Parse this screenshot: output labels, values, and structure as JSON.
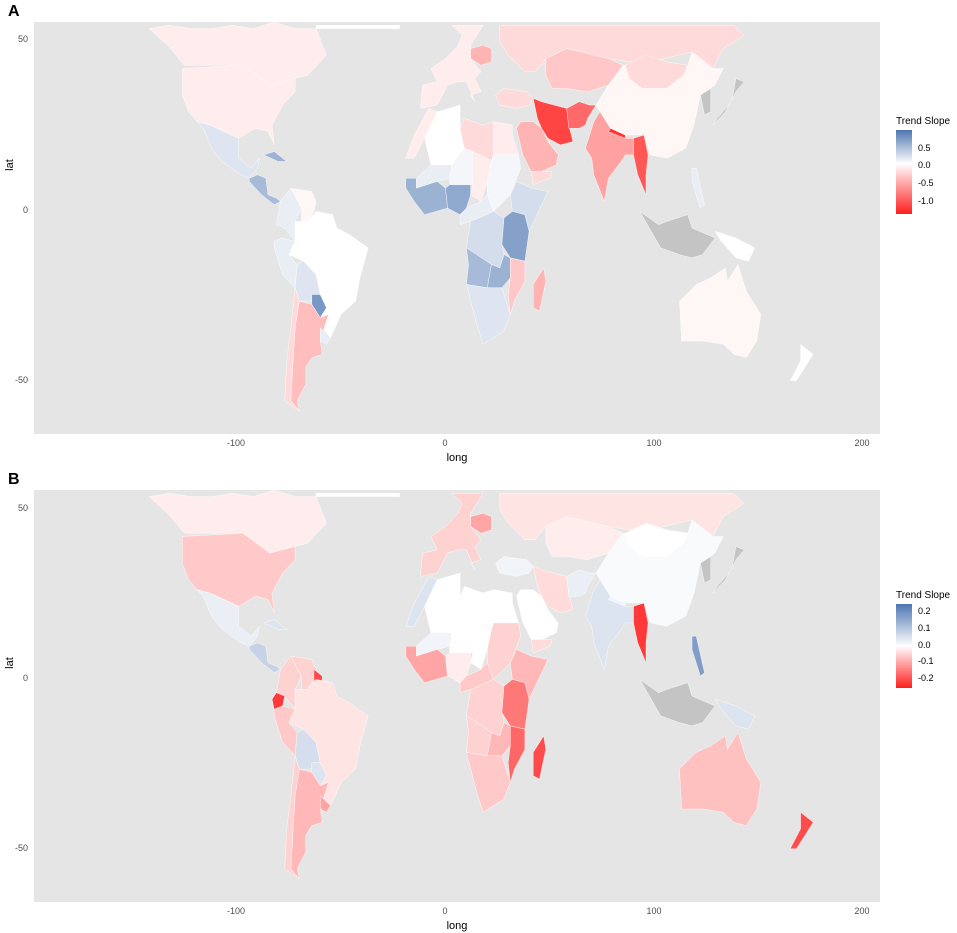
{
  "panels": [
    {
      "letter": "A",
      "x_label": "long",
      "y_label": "lat",
      "x_ticks": [
        "-100",
        "0",
        "100",
        "200"
      ],
      "y_ticks": [
        "50",
        "0",
        "-50"
      ],
      "legend": {
        "title": "Trend Slope",
        "labels": [
          "0.5",
          "0.0",
          "-0.5",
          "-1.0"
        ],
        "range": [
          -1.2,
          0.8
        ]
      },
      "regions": [
        {
          "name": "Canada",
          "value": -0.1
        },
        {
          "name": "United States",
          "value": -0.1
        },
        {
          "name": "Mexico",
          "value": 0.15
        },
        {
          "name": "Central America",
          "value": 0.4
        },
        {
          "name": "Cuba",
          "value": 0.45
        },
        {
          "name": "Colombia",
          "value": 0.1
        },
        {
          "name": "Venezuela",
          "value": -0.05
        },
        {
          "name": "Brazil",
          "value": 0.0
        },
        {
          "name": "Peru",
          "value": 0.1
        },
        {
          "name": "Bolivia",
          "value": 0.15
        },
        {
          "name": "Paraguay",
          "value": 0.6
        },
        {
          "name": "Argentina",
          "value": -0.35
        },
        {
          "name": "Chile",
          "value": -0.2
        },
        {
          "name": "Uruguay",
          "value": 0.1
        },
        {
          "name": "Greenland",
          "value": 0.0
        },
        {
          "name": "Western Europe",
          "value": -0.1
        },
        {
          "name": "Poland",
          "value": -0.4
        },
        {
          "name": "Russia",
          "value": -0.2
        },
        {
          "name": "Kazakhstan",
          "value": -0.3
        },
        {
          "name": "Iran",
          "value": -1.0
        },
        {
          "name": "Afghanistan",
          "value": -0.8
        },
        {
          "name": "Turkey",
          "value": -0.2
        },
        {
          "name": "Saudi Arabia",
          "value": -0.4
        },
        {
          "name": "Yemen",
          "value": -0.2
        },
        {
          "name": "India",
          "value": -0.5
        },
        {
          "name": "Nepal",
          "value": -1.1
        },
        {
          "name": "Myanmar",
          "value": -0.9
        },
        {
          "name": "Mongolia",
          "value": -0.2
        },
        {
          "name": "China",
          "value": -0.05
        },
        {
          "name": "Japan",
          "value": null
        },
        {
          "name": "Korea",
          "value": null
        },
        {
          "name": "Philippines",
          "value": 0.1
        },
        {
          "name": "Indonesia",
          "value": null
        },
        {
          "name": "Papua New Guinea",
          "value": 0.0
        },
        {
          "name": "Australia",
          "value": -0.05
        },
        {
          "name": "New Zealand",
          "value": 0.0
        },
        {
          "name": "Algeria",
          "value": 0.0
        },
        {
          "name": "Morocco",
          "value": -0.1
        },
        {
          "name": "Libya",
          "value": -0.2
        },
        {
          "name": "Egypt",
          "value": -0.1
        },
        {
          "name": "Mali",
          "value": 0.1
        },
        {
          "name": "Niger",
          "value": 0.05
        },
        {
          "name": "West Africa coast",
          "value": 0.45
        },
        {
          "name": "Nigeria",
          "value": 0.5
        },
        {
          "name": "Chad",
          "value": -0.1
        },
        {
          "name": "Sudan",
          "value": 0.05
        },
        {
          "name": "Ethiopia",
          "value": 0.2
        },
        {
          "name": "Central Africa",
          "value": 0.1
        },
        {
          "name": "DR Congo",
          "value": 0.2
        },
        {
          "name": "Uganda",
          "value": 0.55
        },
        {
          "name": "Angola",
          "value": 0.4
        },
        {
          "name": "Zambia",
          "value": 0.45
        },
        {
          "name": "Mozambique",
          "value": -0.3
        },
        {
          "name": "Madagascar",
          "value": -0.4
        },
        {
          "name": "Southern Africa",
          "value": 0.15
        }
      ]
    },
    {
      "letter": "B",
      "x_label": "long",
      "y_label": "lat",
      "x_ticks": [
        "-100",
        "0",
        "100",
        "200"
      ],
      "y_ticks": [
        "50",
        "0",
        "-50"
      ],
      "legend": {
        "title": "Trend Slope",
        "labels": [
          "0.2",
          "0.1",
          "0.0",
          "-0.1",
          "-0.2"
        ],
        "range": [
          -0.25,
          0.25
        ]
      },
      "regions": [
        {
          "name": "Canada",
          "value": -0.02
        },
        {
          "name": "United States",
          "value": -0.06
        },
        {
          "name": "Mexico",
          "value": 0.03
        },
        {
          "name": "Central America",
          "value": 0.08
        },
        {
          "name": "Cuba",
          "value": 0.05
        },
        {
          "name": "Colombia",
          "value": -0.05
        },
        {
          "name": "Venezuela",
          "value": -0.05
        },
        {
          "name": "Guyana",
          "value": -0.2
        },
        {
          "name": "Ecuador",
          "value": -0.22
        },
        {
          "name": "Brazil",
          "value": -0.03
        },
        {
          "name": "Peru",
          "value": -0.06
        },
        {
          "name": "Bolivia",
          "value": 0.06
        },
        {
          "name": "Paraguay",
          "value": 0.05
        },
        {
          "name": "Argentina",
          "value": -0.08
        },
        {
          "name": "Chile",
          "value": -0.05
        },
        {
          "name": "Uruguay",
          "value": -0.1
        },
        {
          "name": "Greenland",
          "value": 0.0
        },
        {
          "name": "Western Europe",
          "value": -0.05
        },
        {
          "name": "Poland",
          "value": -0.1
        },
        {
          "name": "Russia",
          "value": -0.03
        },
        {
          "name": "Kazakhstan",
          "value": -0.02
        },
        {
          "name": "Iran",
          "value": -0.04
        },
        {
          "name": "Afghanistan",
          "value": 0.03
        },
        {
          "name": "Turkey",
          "value": 0.02
        },
        {
          "name": "Saudi Arabia",
          "value": 0.0
        },
        {
          "name": "Yemen",
          "value": -0.04
        },
        {
          "name": "India",
          "value": 0.05
        },
        {
          "name": "Nepal",
          "value": 0.02
        },
        {
          "name": "Myanmar",
          "value": -0.22
        },
        {
          "name": "Mongolia",
          "value": 0.0
        },
        {
          "name": "China",
          "value": 0.01
        },
        {
          "name": "Japan",
          "value": null
        },
        {
          "name": "Korea",
          "value": null
        },
        {
          "name": "Philippines",
          "value": 0.18
        },
        {
          "name": "Indonesia",
          "value": null
        },
        {
          "name": "Papua New Guinea",
          "value": 0.05
        },
        {
          "name": "Australia",
          "value": -0.07
        },
        {
          "name": "New Zealand",
          "value": -0.2
        },
        {
          "name": "Algeria",
          "value": 0.0
        },
        {
          "name": "Morocco",
          "value": 0.05
        },
        {
          "name": "Libya",
          "value": 0.0
        },
        {
          "name": "Egypt",
          "value": 0.0
        },
        {
          "name": "Mali",
          "value": 0.02
        },
        {
          "name": "Niger",
          "value": 0.0
        },
        {
          "name": "West Africa coast",
          "value": -0.1
        },
        {
          "name": "Nigeria",
          "value": -0.02
        },
        {
          "name": "Chad",
          "value": 0.0
        },
        {
          "name": "Sudan",
          "value": -0.05
        },
        {
          "name": "Ethiopia",
          "value": -0.08
        },
        {
          "name": "Central Africa",
          "value": -0.06
        },
        {
          "name": "DR Congo",
          "value": -0.05
        },
        {
          "name": "Uganda",
          "value": -0.15
        },
        {
          "name": "Angola",
          "value": -0.05
        },
        {
          "name": "Zambia",
          "value": -0.08
        },
        {
          "name": "Mozambique",
          "value": -0.17
        },
        {
          "name": "Madagascar",
          "value": -0.2
        },
        {
          "name": "Southern Africa",
          "value": -0.06
        }
      ]
    }
  ],
  "colors": {
    "panel_bg": "#e5e5e5",
    "no_data": "#c4c4c4",
    "high": "#4e76b1",
    "mid": "#ffffff",
    "low": "#ff1e1e"
  }
}
